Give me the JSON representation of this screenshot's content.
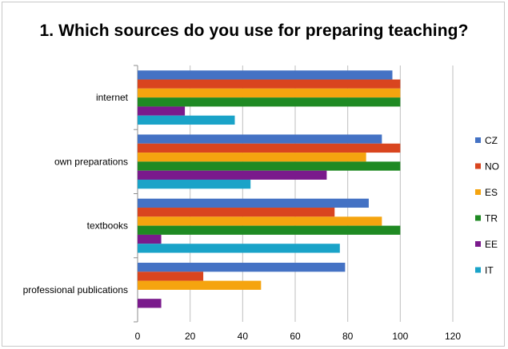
{
  "chart_data": {
    "type": "bar",
    "orientation": "horizontal",
    "title": "1. Which sources do you use for preparing teaching?",
    "categories": [
      "internet",
      "own preparations",
      "textbooks",
      "professional publications"
    ],
    "xlim": [
      0,
      120
    ],
    "xticks": [
      0,
      20,
      40,
      60,
      80,
      100,
      120
    ],
    "grid": true,
    "legend_position": "right",
    "series": [
      {
        "name": "CZ",
        "color": "#4472c4",
        "values": [
          97,
          93,
          88,
          79
        ]
      },
      {
        "name": "NO",
        "color": "#d9451f",
        "values": [
          100,
          100,
          75,
          25
        ]
      },
      {
        "name": "ES",
        "color": "#f5a40f",
        "values": [
          100,
          87,
          93,
          47
        ]
      },
      {
        "name": "TR",
        "color": "#1f8a23",
        "values": [
          100,
          100,
          100,
          0
        ]
      },
      {
        "name": "EE",
        "color": "#7a1a8c",
        "values": [
          18,
          72,
          9,
          9
        ]
      },
      {
        "name": "IT",
        "color": "#1aa3c8",
        "values": [
          37,
          43,
          77,
          0
        ]
      }
    ]
  }
}
